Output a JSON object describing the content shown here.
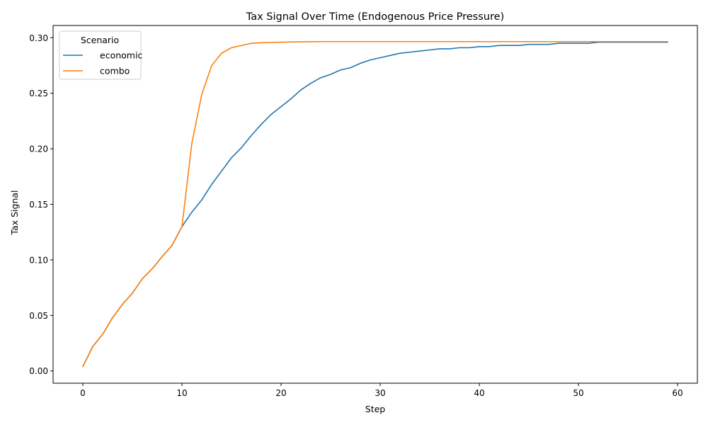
{
  "chart_data": {
    "type": "line",
    "title": "Tax Signal Over Time (Endogenous Price Pressure)",
    "xlabel": "Step",
    "ylabel": "Tax Signal",
    "xlim": [
      -3,
      62
    ],
    "ylim": [
      -0.011,
      0.311
    ],
    "xticks": [
      0,
      10,
      20,
      30,
      40,
      50,
      60
    ],
    "yticks": [
      0.0,
      0.05,
      0.1,
      0.15,
      0.2,
      0.25,
      0.3
    ],
    "grid": false,
    "legend": {
      "title": "Scenario",
      "placement": "top-left"
    },
    "series": [
      {
        "name": "economic",
        "color": "#1f77b4",
        "x": [
          0,
          1,
          2,
          3,
          4,
          5,
          6,
          7,
          8,
          9,
          10,
          11,
          12,
          13,
          14,
          15,
          16,
          17,
          18,
          19,
          20,
          21,
          22,
          23,
          24,
          25,
          26,
          27,
          28,
          29,
          30,
          31,
          32,
          33,
          34,
          35,
          36,
          37,
          38,
          39,
          40,
          41,
          42,
          43,
          44,
          45,
          46,
          47,
          48,
          49,
          50,
          51,
          52,
          53,
          54,
          55,
          56,
          57,
          58,
          59
        ],
        "values": [
          0.004,
          0.022,
          0.033,
          0.048,
          0.06,
          0.07,
          0.083,
          0.092,
          0.103,
          0.113,
          0.13,
          0.143,
          0.154,
          0.168,
          0.18,
          0.192,
          0.201,
          0.212,
          0.222,
          0.231,
          0.238,
          0.245,
          0.253,
          0.259,
          0.264,
          0.267,
          0.271,
          0.273,
          0.277,
          0.28,
          0.282,
          0.284,
          0.286,
          0.287,
          0.288,
          0.289,
          0.29,
          0.29,
          0.291,
          0.291,
          0.292,
          0.292,
          0.293,
          0.293,
          0.293,
          0.294,
          0.294,
          0.294,
          0.295,
          0.295,
          0.295,
          0.295,
          0.296,
          0.296,
          0.296,
          0.296,
          0.296,
          0.296,
          0.296,
          0.296
        ]
      },
      {
        "name": "combo",
        "color": "#ff7f0e",
        "x": [
          0,
          1,
          2,
          3,
          4,
          5,
          6,
          7,
          8,
          9,
          10,
          11,
          12,
          13,
          14,
          15,
          16,
          17,
          18,
          19,
          20,
          21,
          22,
          23,
          24,
          25,
          26,
          27,
          28,
          29,
          30,
          31,
          32,
          33,
          34,
          35,
          36,
          37,
          38,
          39,
          40,
          41,
          42,
          43,
          44,
          45,
          46,
          47,
          48,
          49,
          50,
          51,
          52,
          53,
          54,
          55,
          56,
          57,
          58,
          59
        ],
        "values": [
          0.004,
          0.022,
          0.033,
          0.048,
          0.06,
          0.07,
          0.083,
          0.092,
          0.103,
          0.113,
          0.13,
          0.205,
          0.249,
          0.275,
          0.286,
          0.291,
          0.293,
          0.295,
          0.2955,
          0.2958,
          0.296,
          0.2962,
          0.2963,
          0.2964,
          0.2965,
          0.2965,
          0.2965,
          0.2965,
          0.2965,
          0.2965,
          0.2965,
          0.2965,
          0.2965,
          0.2965,
          0.2965,
          0.2965,
          0.2965,
          0.2965,
          0.2965,
          0.2965,
          0.2965,
          0.2965,
          0.2965,
          0.2965,
          0.2965,
          0.2965,
          0.2965,
          0.2965,
          0.2965,
          0.2965,
          0.2965,
          0.2965,
          0.2965,
          0.2965,
          0.2965,
          0.2965,
          0.2965,
          0.2965,
          0.2965,
          0.2965
        ]
      }
    ]
  }
}
